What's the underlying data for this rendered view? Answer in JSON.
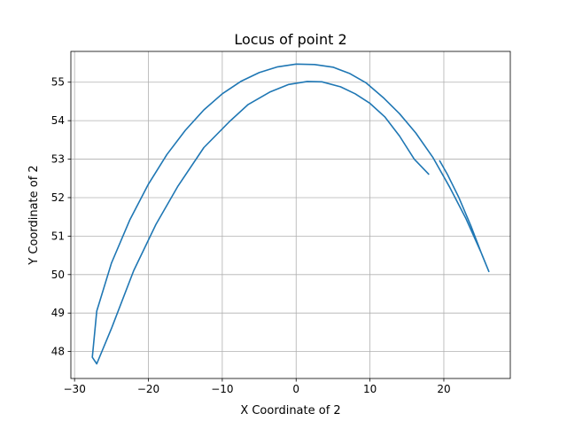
{
  "chart_data": {
    "type": "line",
    "title": "Locus of point 2",
    "xlabel": "X Coordinate of 2",
    "ylabel": "Y Coordinate of 2",
    "xlim": [
      -30.5,
      29.0
    ],
    "ylim": [
      47.3,
      55.8
    ],
    "xticks": [
      -30,
      -20,
      -10,
      0,
      10,
      20
    ],
    "yticks": [
      48,
      49,
      50,
      51,
      52,
      53,
      54,
      55
    ],
    "xtick_labels": [
      "−30",
      "−20",
      "−10",
      "0",
      "10",
      "20"
    ],
    "ytick_labels": [
      "48",
      "49",
      "50",
      "51",
      "52",
      "53",
      "54",
      "55"
    ],
    "grid": true,
    "line_color": "#1f77b4",
    "series": [
      {
        "x": [
          19.4,
          20.5,
          22.0,
          23.7,
          25.2,
          26.1,
          25.1,
          23.0,
          20.8,
          18.5,
          16.2,
          14.0,
          11.8,
          9.5,
          7.2,
          5.0,
          2.5,
          0.0,
          -2.5,
          -5.0,
          -7.5,
          -10.0,
          -12.5,
          -15.0,
          -17.5,
          -20.0,
          -22.5,
          -25.0,
          -27.0,
          -27.6,
          -27.0,
          -25.0,
          -22.0,
          -19.0,
          -16.0,
          -12.5,
          -9.0,
          -6.5,
          -3.5,
          -1.0,
          1.5,
          3.5,
          6.0,
          8.0,
          10.0,
          12.0,
          14.0,
          16.0,
          18.0
        ],
        "y": [
          52.97,
          52.6,
          52.02,
          51.25,
          50.5,
          50.08,
          50.55,
          51.45,
          52.27,
          53.05,
          53.68,
          54.18,
          54.6,
          54.98,
          55.23,
          55.39,
          55.46,
          55.47,
          55.4,
          55.25,
          55.02,
          54.7,
          54.28,
          53.75,
          53.12,
          52.35,
          51.43,
          50.3,
          49.05,
          47.85,
          47.68,
          48.6,
          50.1,
          51.3,
          52.3,
          53.3,
          53.98,
          54.42,
          54.75,
          54.94,
          55.02,
          55.01,
          54.88,
          54.7,
          54.45,
          54.1,
          53.6,
          53.0,
          52.6
        ]
      }
    ]
  }
}
